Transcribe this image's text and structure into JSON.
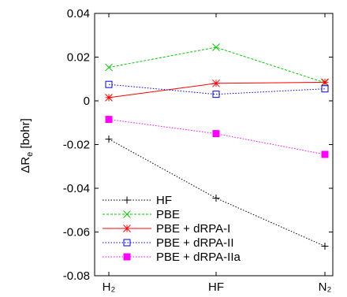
{
  "chart_data": {
    "type": "line",
    "title": "",
    "xlabel": "",
    "ylabel": "ΔR",
    "ylabel_sub": "e",
    "ylabel_unit": " [bohr]",
    "categories": [
      "H₂",
      "HF",
      "N₂"
    ],
    "ylim": [
      -0.08,
      0.04
    ],
    "yticks": [
      -0.08,
      -0.06,
      -0.04,
      -0.02,
      0,
      0.02,
      0.04
    ],
    "ytick_labels": [
      "-0.08",
      "-0.06",
      "-0.04",
      "-0.02",
      "0",
      "0.02",
      "0.04"
    ],
    "grid": false,
    "legend_position": "bottom-left",
    "series": [
      {
        "name": "HF",
        "values": [
          -0.0175,
          -0.0445,
          -0.0665
        ],
        "color": "#000000",
        "line": "dotted",
        "marker": "plus"
      },
      {
        "name": "PBE",
        "values": [
          0.0153,
          0.0245,
          0.0083
        ],
        "color": "#00cc00",
        "line": "dashed",
        "marker": "x"
      },
      {
        "name": "PBE + dRPA-I",
        "values": [
          0.0015,
          0.008,
          0.0085
        ],
        "color": "#ff0000",
        "line": "solid",
        "marker": "star"
      },
      {
        "name": "PBE + dRPA-II",
        "values": [
          0.0075,
          0.003,
          0.0055
        ],
        "color": "#0000ff",
        "line": "dotted",
        "marker": "square-open"
      },
      {
        "name": "PBE + dRPA-IIa",
        "values": [
          -0.0085,
          -0.015,
          -0.0245
        ],
        "color": "#ff00ff",
        "line": "dotted",
        "marker": "square-filled"
      }
    ]
  }
}
